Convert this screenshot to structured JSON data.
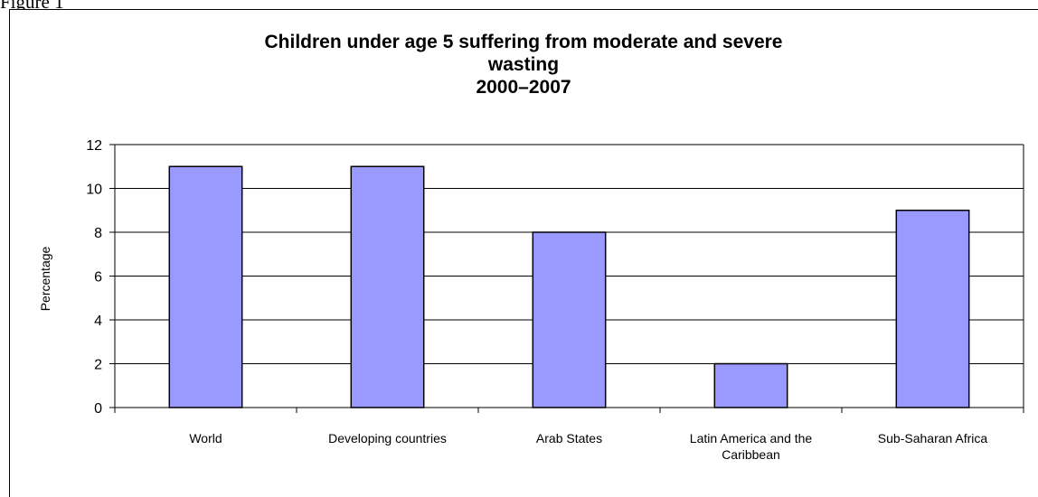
{
  "figure_caption": "Figure 1",
  "chart_data": {
    "type": "bar",
    "title_lines": [
      "Children under age 5 suffering from moderate and severe",
      "wasting",
      "2000–2007"
    ],
    "categories": [
      [
        "World"
      ],
      [
        "Developing countries"
      ],
      [
        "Arab States"
      ],
      [
        "Latin America and the",
        "Caribbean"
      ],
      [
        "Sub-Saharan Africa"
      ]
    ],
    "values": [
      11,
      11,
      8,
      2,
      9
    ],
    "xlabel": "",
    "ylabel": "Percentage",
    "ylim": [
      0,
      12
    ],
    "yticks": [
      0,
      2,
      4,
      6,
      8,
      10,
      12
    ],
    "grid": true,
    "bar_color": "#9999ff",
    "bar_border_color": "#000000",
    "grid_color": "#000000"
  }
}
